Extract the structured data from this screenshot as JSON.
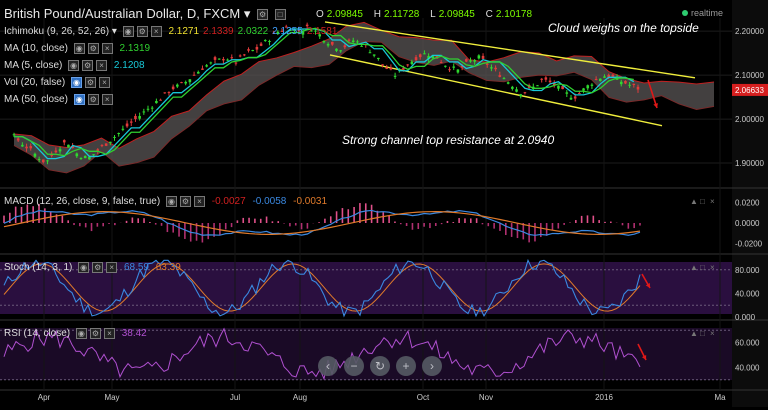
{
  "header": {
    "title": "British Pound/Australian Dollar, D, FXCM",
    "title_caret": "▾",
    "realtime": "realtime",
    "ohlc": [
      {
        "key": "O",
        "value": "2.09845"
      },
      {
        "key": "H",
        "value": "2.11728"
      },
      {
        "key": "L",
        "value": "2.09845"
      },
      {
        "key": "C",
        "value": "2.10178"
      }
    ]
  },
  "indicators": {
    "ichimoku": {
      "label": "Ichimoku (9, 26, 52, 26)",
      "values": [
        "2.1271",
        "2.1339",
        "2.0322",
        "2.1255",
        "2.1581"
      ],
      "colors": [
        "#f0e130",
        "#d02020",
        "#30d030",
        "#40a0ff",
        "#d02020"
      ]
    },
    "ma10": {
      "label": "MA (10, close)",
      "value": "2.1319",
      "color": "#30d030"
    },
    "ma5": {
      "label": "MA (5, close)",
      "value": "2.1208",
      "color": "#18c8d8"
    },
    "vol": {
      "label": "Vol (20, false)"
    },
    "ma50": {
      "label": "MA (50, close)"
    },
    "macd": {
      "label": "MACD (12, 26, close, 9, false, true)",
      "values": [
        "-0.0027",
        "-0.0058",
        "-0.0031"
      ]
    },
    "stoch": {
      "label": "Stoch (14, 3, 1)",
      "values": [
        "68.59",
        "63.39"
      ]
    },
    "rsi": {
      "label": "RSI (14, close)",
      "value": "38.42"
    }
  },
  "annotations": {
    "cloud": "Cloud weighs on the topside",
    "channel": "Strong channel top resistance at 2.0940"
  },
  "price_tag": "2.06633",
  "colors": {
    "background": "#000000",
    "up": "#2fd82f",
    "down": "#e23b3b",
    "ma10": "#30d030",
    "ma5": "#18c8d8",
    "channel": "#f0ee3c",
    "cloud": "#5a5555",
    "macd_line": "#3a88e0",
    "macd_signal": "#e07a2a",
    "stoch_bg": "#2a0f3f",
    "stoch_k": "#3a88e0",
    "stoch_d": "#e07a2a",
    "rsi": "#b050d0",
    "arrow": "#e01818"
  },
  "nav_buttons": [
    "‹",
    "−",
    "↻",
    "+",
    "›"
  ],
  "chart_data": {
    "type": "line",
    "title": "British Pound/Australian Dollar, D, FXCM",
    "xlabel": "",
    "ylabel": "",
    "x_ticks": [
      "Apr",
      "May",
      "Jul",
      "Aug",
      "Oct",
      "Nov",
      "2016",
      "Ma"
    ],
    "price_panel": {
      "y_ticks": [
        "2.20000",
        "2.10000",
        "2.00000",
        "1.90000"
      ],
      "ylim": [
        1.85,
        2.23
      ],
      "series": [
        {
          "name": "Close",
          "values": [
            1.96,
            1.94,
            1.92,
            1.9,
            1.93,
            1.95,
            1.92,
            1.91,
            1.93,
            1.95,
            1.97,
            1.99,
            2.01,
            2.03,
            2.05,
            2.07,
            2.08,
            2.1,
            2.12,
            2.13,
            2.14,
            2.13,
            2.15,
            2.16,
            2.18,
            2.2,
            2.21,
            2.2,
            2.21,
            2.19,
            2.17,
            2.16,
            2.18,
            2.17,
            2.15,
            2.12,
            2.1,
            2.12,
            2.14,
            2.15,
            2.14,
            2.12,
            2.11,
            2.13,
            2.14,
            2.12,
            2.1,
            2.08,
            2.06,
            2.07,
            2.09,
            2.08,
            2.06,
            2.05,
            2.07,
            2.09,
            2.1,
            2.09,
            2.08,
            2.07
          ]
        }
      ],
      "channel_top": [
        2.221,
        2.094
      ],
      "channel_bottom": [
        2.146,
        1.985
      ]
    },
    "macd_panel": {
      "y_ticks": [
        "0.0200",
        "0.0000",
        "-0.0200"
      ],
      "ylim": [
        -0.03,
        0.03
      ]
    },
    "stoch_panel": {
      "y_ticks": [
        "80.000",
        "40.000",
        "0.000"
      ],
      "ylim": [
        -5,
        100
      ]
    },
    "rsi_panel": {
      "y_ticks": [
        "60.000",
        "40.000"
      ],
      "ylim": [
        25,
        75
      ]
    }
  }
}
